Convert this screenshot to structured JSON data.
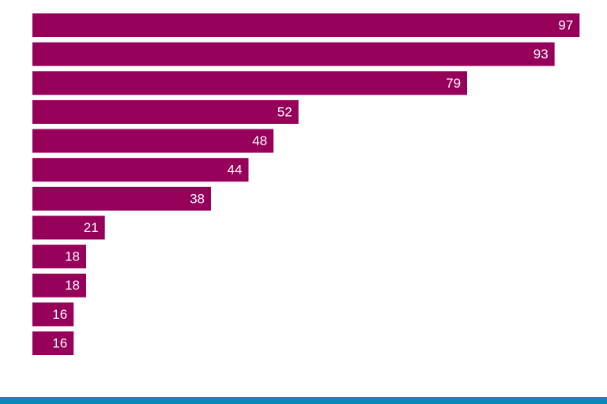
{
  "chart_data": {
    "type": "barh",
    "categories": [
      null,
      null,
      null,
      null,
      null,
      null,
      null,
      null,
      null,
      null,
      null,
      null
    ],
    "values": [
      97,
      93,
      79,
      52,
      48,
      44,
      38,
      21,
      18,
      18,
      16,
      16
    ],
    "color": "#96005a",
    "xlim": [
      9.4,
      100
    ]
  }
}
